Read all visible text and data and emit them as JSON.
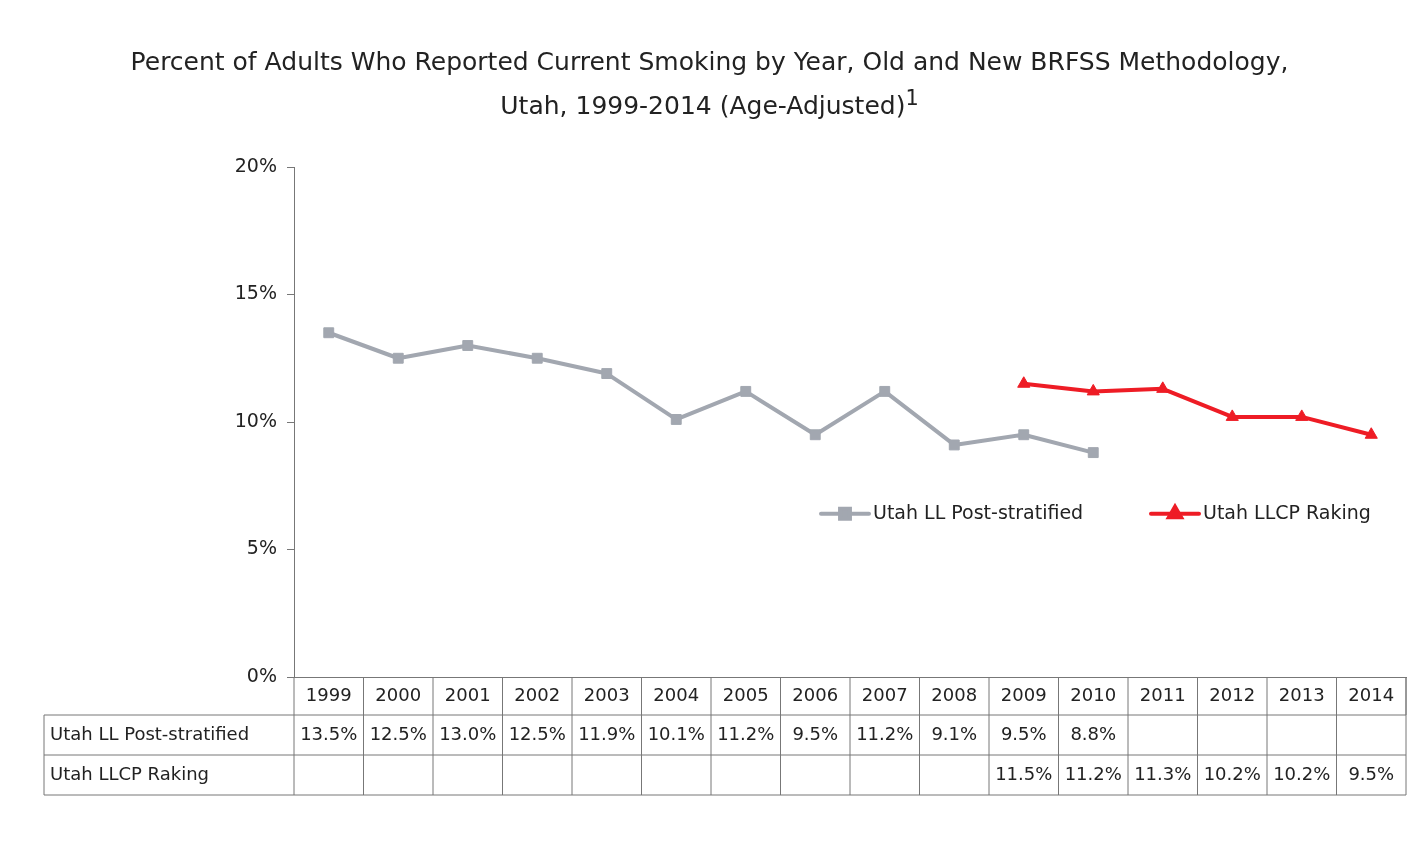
{
  "chart_data": {
    "type": "line",
    "title": "Percent of Adults Who Reported Current Smoking by Year, Old and New BRFSS Methodology,\nUtah, 1999-2014 (Age-Adjusted)$^{1}$",
    "categories": [
      "1999",
      "2000",
      "2001",
      "2002",
      "2003",
      "2004",
      "2005",
      "2006",
      "2007",
      "2008",
      "2009",
      "2010",
      "2011",
      "2012",
      "2013",
      "2014"
    ],
    "series": [
      {
        "name": "Utah LL Post-stratified",
        "color": "#a2a7b0",
        "marker": "square",
        "values": [
          13.5,
          12.5,
          13.0,
          12.5,
          11.9,
          10.1,
          11.2,
          9.5,
          11.2,
          9.1,
          9.5,
          8.8,
          null,
          null,
          null,
          null
        ],
        "value_labels": [
          "13.5%",
          "12.5%",
          "13.0%",
          "12.5%",
          "11.9%",
          "10.1%",
          "11.2%",
          "9.5%",
          "11.2%",
          "9.1%",
          "9.5%",
          "8.8%",
          null,
          null,
          null,
          null
        ]
      },
      {
        "name": "Utah LLCP Raking",
        "color": "#ee1c25",
        "marker": "triangle",
        "values": [
          null,
          null,
          null,
          null,
          null,
          null,
          null,
          null,
          null,
          null,
          11.5,
          11.2,
          11.3,
          10.2,
          10.2,
          9.5
        ],
        "value_labels": [
          null,
          null,
          null,
          null,
          null,
          null,
          null,
          null,
          null,
          null,
          "11.5%",
          "11.2%",
          "11.3%",
          "10.2%",
          "10.2%",
          "9.5%"
        ]
      }
    ],
    "ylim": [
      0,
      20
    ],
    "yticks": [
      {
        "value": 0,
        "label": "0%"
      },
      {
        "value": 5,
        "label": "5%"
      },
      {
        "value": 10,
        "label": "10%"
      },
      {
        "value": 15,
        "label": "15%"
      },
      {
        "value": 20,
        "label": "20%"
      }
    ],
    "grid": false,
    "legend": "right",
    "line_style": "solid"
  }
}
